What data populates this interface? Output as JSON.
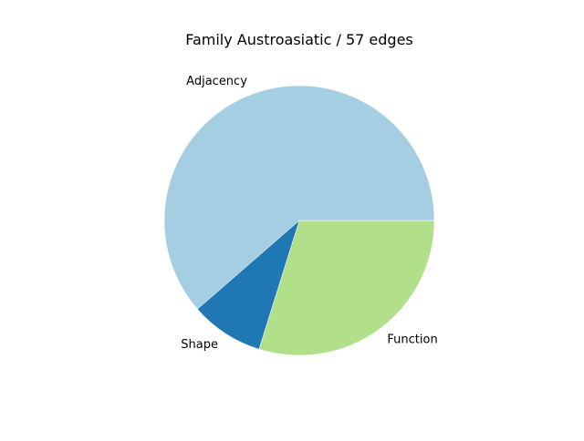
{
  "chart_data": {
    "type": "pie",
    "title": "Family Austroasiatic / 57 edges",
    "slices": [
      {
        "label": "Function",
        "value": 17,
        "color": "#b2df8a"
      },
      {
        "label": "Shape",
        "value": 5,
        "color": "#1f78b4"
      },
      {
        "label": "Adjacency",
        "value": 35,
        "color": "#a6cee3"
      }
    ],
    "start_angle_deg": 0,
    "direction": "clockwise"
  }
}
